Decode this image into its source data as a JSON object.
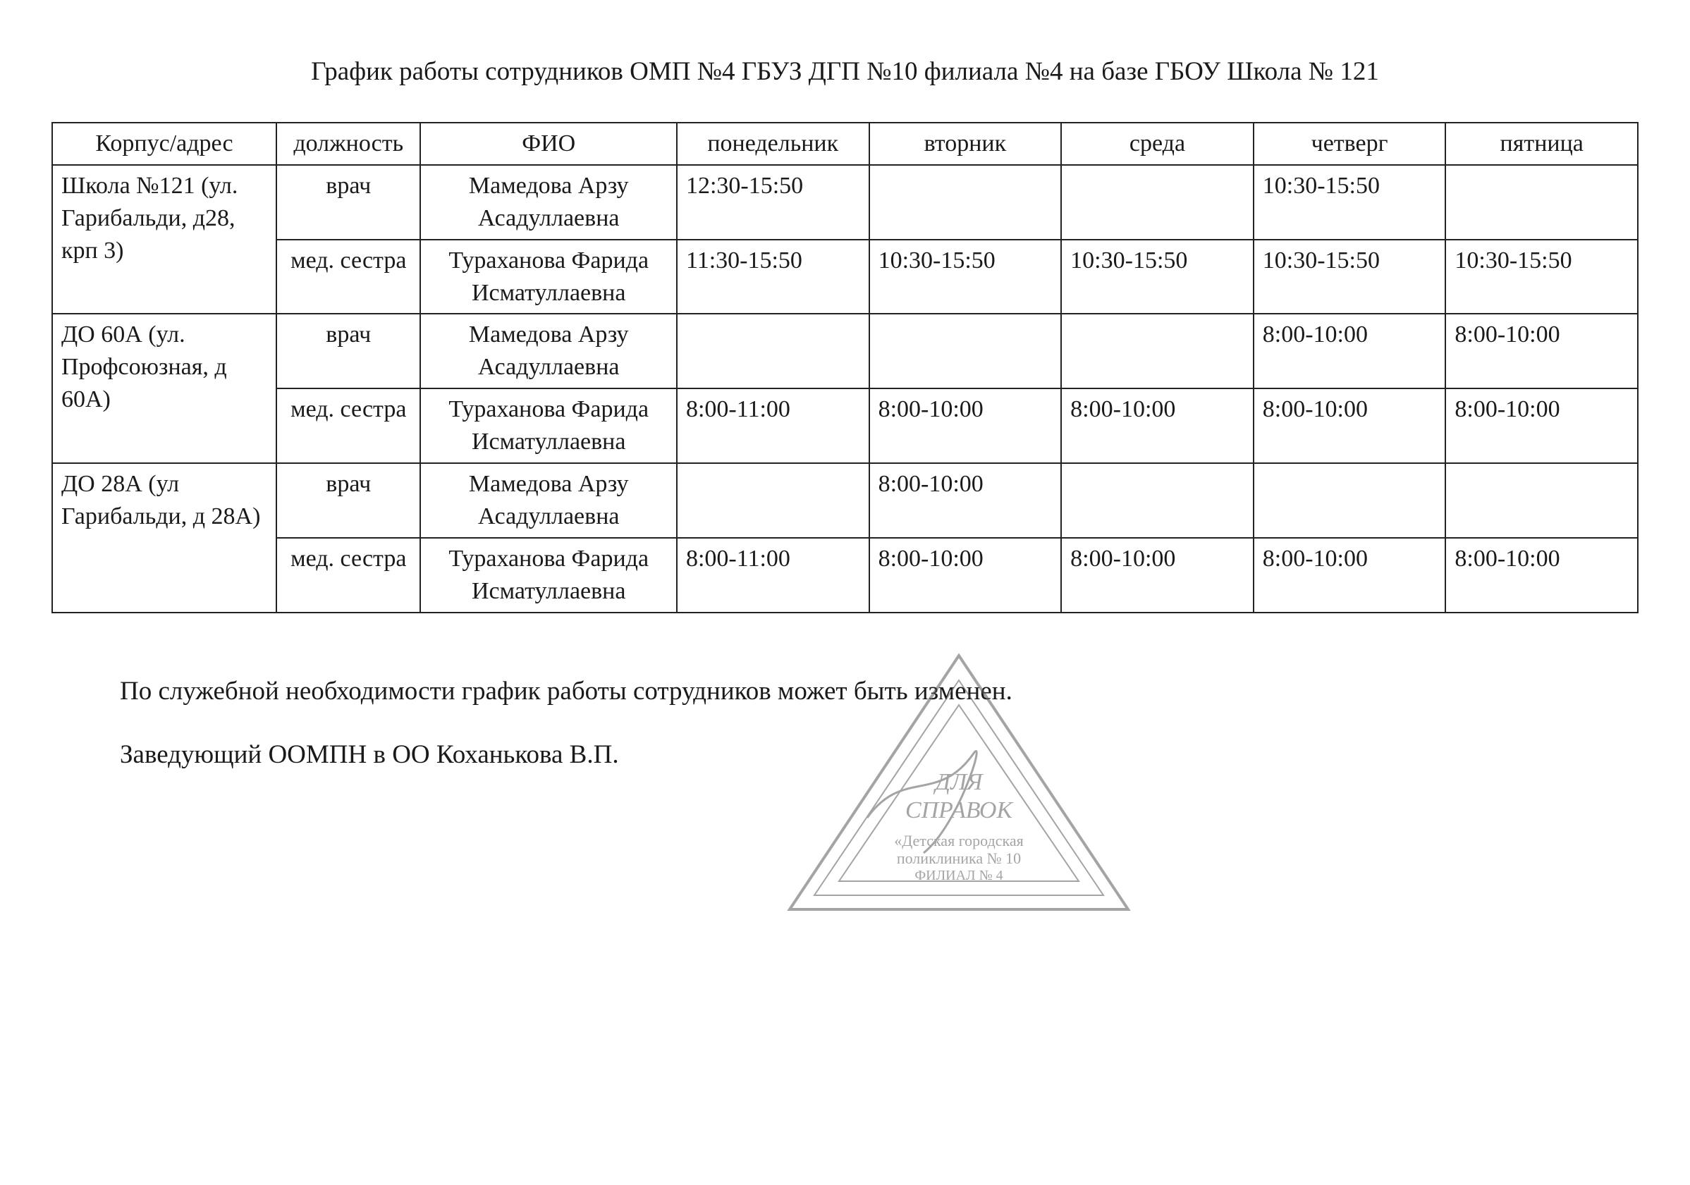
{
  "title": "График работы сотрудников ОМП №4 ГБУЗ ДГП №10 филиала №4 на базе ГБОУ Школа № 121",
  "table": {
    "columns": [
      "Корпус/адрес",
      "должность",
      "ФИО",
      "понедельник",
      "вторник",
      "среда",
      "четверг",
      "пятница"
    ],
    "groups": [
      {
        "address": "Школа №121 (ул. Гарибальди, д28, крп 3)",
        "rows": [
          {
            "role": "врач",
            "name": "Мамедова Арзу Асадуллаевна",
            "mon": "12:30-15:50",
            "tue": "",
            "wed": "",
            "thu": "10:30-15:50",
            "fri": ""
          },
          {
            "role": "мед. сестра",
            "name": "Тураханова Фарида Исматуллаевна",
            "mon": "11:30-15:50",
            "tue": "10:30-15:50",
            "wed": "10:30-15:50",
            "thu": "10:30-15:50",
            "fri": "10:30-15:50"
          }
        ]
      },
      {
        "address": "ДО 60А (ул. Профсоюзная, д 60А)",
        "rows": [
          {
            "role": "врач",
            "name": "Мамедова Арзу Асадуллаевна",
            "mon": "",
            "tue": "",
            "wed": "",
            "thu": "8:00-10:00",
            "fri": "8:00-10:00"
          },
          {
            "role": "мед. сестра",
            "name": "Тураханова Фарида Исматуллаевна",
            "mon": "8:00-11:00",
            "tue": "8:00-10:00",
            "wed": "8:00-10:00",
            "thu": "8:00-10:00",
            "fri": "8:00-10:00"
          }
        ]
      },
      {
        "address": "ДО 28А (ул Гарибальди, д 28А)",
        "rows": [
          {
            "role": "врач",
            "name": "Мамедова Арзу Асадуллаевна",
            "mon": "",
            "tue": "8:00-10:00",
            "wed": "",
            "thu": "",
            "fri": ""
          },
          {
            "role": "мед. сестра",
            "name": "Тураханова Фарида Исматуллаевна",
            "mon": "8:00-11:00",
            "tue": "8:00-10:00",
            "wed": "8:00-10:00",
            "thu": "8:00-10:00",
            "fri": "8:00-10:00"
          }
        ]
      }
    ],
    "border_color": "#222222",
    "font_size_pt": 26,
    "col_widths_pct": [
      14,
      9,
      16,
      12,
      12,
      12,
      12,
      12
    ]
  },
  "footer": {
    "note": "По служебной необходимости график работы сотрудников может быть изменен.",
    "head": "Заведующий ООМПН в ОО Коханькова В.П."
  },
  "stamp": {
    "shape": "triangle",
    "line1": "ДЛЯ",
    "line2": "СПРАВОК",
    "line3": "«Детская городская",
    "line4": "поликлиника № 10",
    "line5": "ФИЛИАЛ № 4",
    "stroke": "#5a5a5a",
    "opacity": 0.55
  },
  "colors": {
    "text": "#1a1a1a",
    "background": "#ffffff"
  }
}
